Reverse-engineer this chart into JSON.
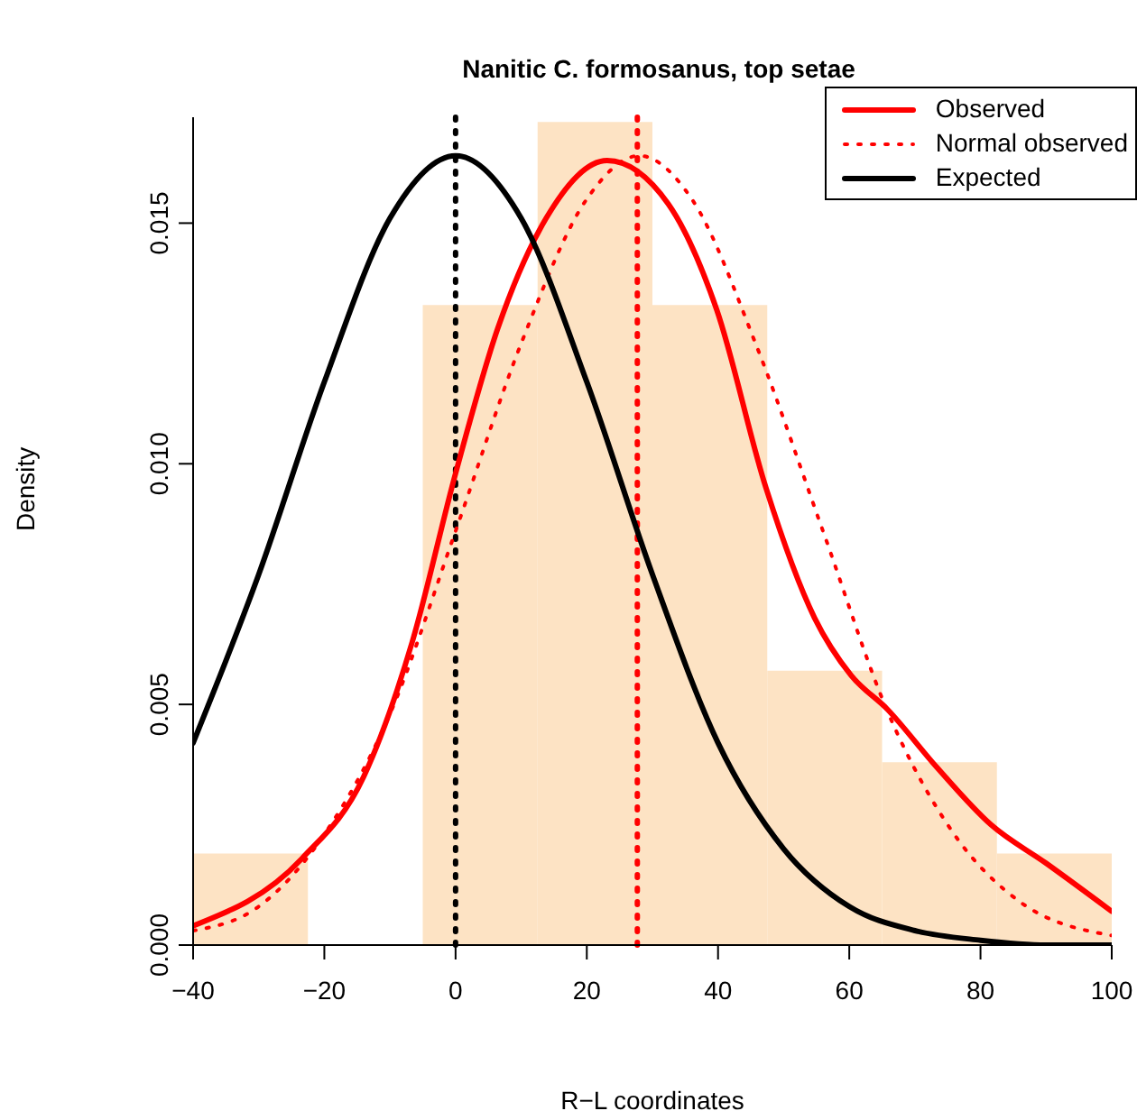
{
  "chart_data": {
    "type": "histogram",
    "title": "Nanitic C. formosanus, top setae",
    "xlabel": "R−L coordinates",
    "ylabel": "Density",
    "bins": [
      -40,
      -22.5,
      -5,
      12.5,
      30,
      47.5,
      65,
      82.5,
      100
    ],
    "values": [
      0.0019,
      0,
      0.0133,
      0.0171,
      0.0133,
      0.0057,
      0.0038,
      0.0019
    ],
    "color": "#fde3c4",
    "series": [
      {
        "name": "Observed",
        "type": "line",
        "color": "#ff0000",
        "line_style": "solid",
        "x": [
          -40,
          -23.4,
          -14,
          -6.6,
          0,
          6.4,
          13.8,
          23.1,
          32.4,
          39.8,
          47.3,
          54.7,
          60.3,
          65.8,
          73.3,
          81.6,
          90,
          100
        ],
        "values": [
          0.0004,
          0.0018,
          0.0035,
          0.0063,
          0.0098,
          0.0128,
          0.0151,
          0.0163,
          0.0154,
          0.0132,
          0.0095,
          0.0068,
          0.0056,
          0.0049,
          0.0037,
          0.0025,
          0.0017,
          0.0007
        ]
      },
      {
        "name": "Normal observed",
        "type": "line",
        "color": "#ff0000",
        "line_style": "dotted",
        "x": [
          -40,
          -30,
          -20,
          -10,
          0,
          10,
          20,
          28,
          36,
          46,
          56,
          66,
          76,
          86,
          100
        ],
        "values": [
          0.0003,
          0.0008,
          0.0023,
          0.0048,
          0.0086,
          0.0125,
          0.0155,
          0.0164,
          0.0155,
          0.0124,
          0.0086,
          0.0048,
          0.0023,
          0.0009,
          0.0002
        ]
      },
      {
        "name": "Expected",
        "type": "line",
        "color": "#000000",
        "line_style": "solid",
        "x": [
          -40,
          -30,
          -20,
          -10,
          0,
          10,
          20,
          30,
          40,
          50,
          60,
          70,
          80,
          90,
          100
        ],
        "values": [
          0.0042,
          0.0077,
          0.0117,
          0.0151,
          0.0164,
          0.0151,
          0.0117,
          0.0077,
          0.0042,
          0.002,
          0.0008,
          0.0003,
          0.0001,
          0.0,
          0.0
        ]
      }
    ],
    "ref_lines": [
      {
        "axis": "x",
        "value": 0,
        "color": "#000000",
        "line_style": "dotted"
      },
      {
        "axis": "x",
        "value": 27.7,
        "color": "#ff0000",
        "line_style": "dotted"
      }
    ],
    "xlim": [
      -40,
      100
    ],
    "xticks": [
      -40,
      -20,
      0,
      20,
      40,
      60,
      80,
      100
    ],
    "ylim": [
      0,
      0.0172
    ],
    "yticks": [
      {
        "value": 0,
        "label": "0.000"
      },
      {
        "value": 0.005,
        "label": "0.005"
      },
      {
        "value": 0.01,
        "label": "0.010"
      },
      {
        "value": 0.015,
        "label": "0.015"
      }
    ],
    "grid": false,
    "legend": "top right"
  }
}
